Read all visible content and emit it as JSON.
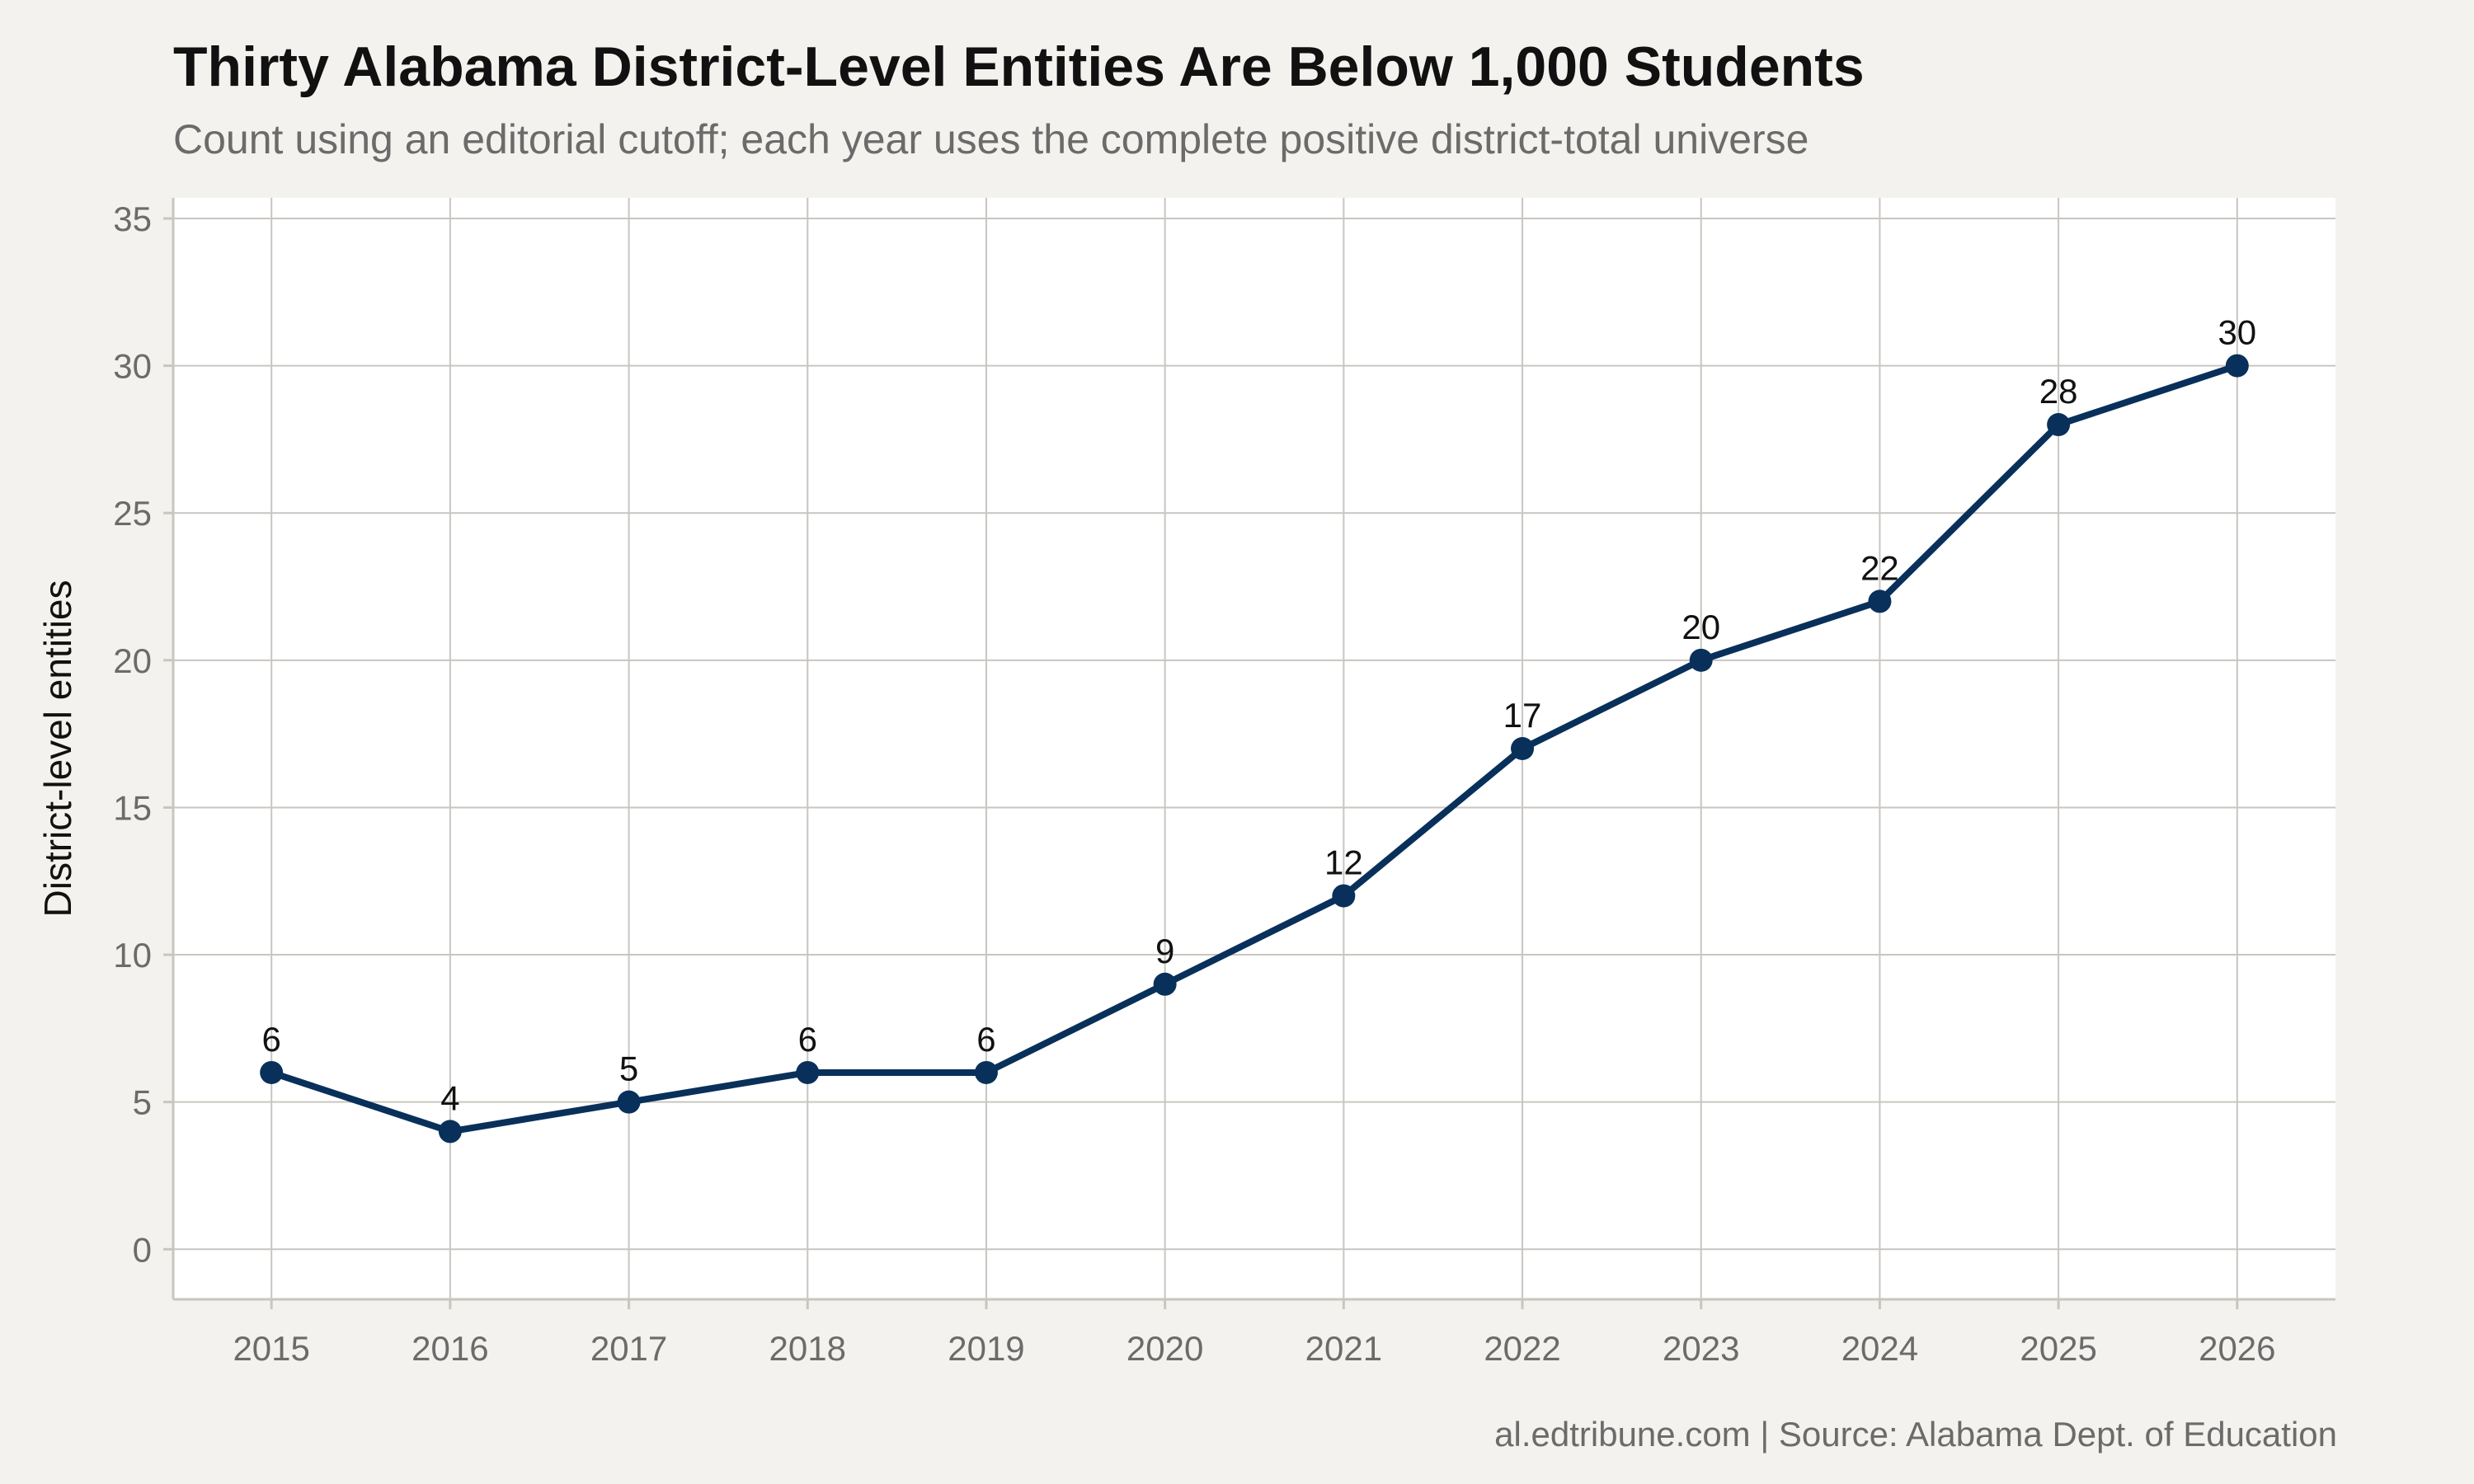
{
  "chart_data": {
    "type": "line",
    "title": "Thirty Alabama District-Level Entities Are Below 1,000 Students",
    "subtitle": "Count using an editorial cutoff; each year uses the complete positive district-total universe",
    "caption": "al.edtribune.com | Source: Alabama Dept. of Education",
    "xlabel": "",
    "ylabel": "District-level entities",
    "x": [
      2015,
      2016,
      2017,
      2018,
      2019,
      2020,
      2021,
      2022,
      2023,
      2024,
      2025,
      2026
    ],
    "series": [
      {
        "values": [
          6,
          4,
          5,
          6,
          6,
          9,
          12,
          17,
          20,
          22,
          28,
          30
        ]
      }
    ],
    "data_labels": [
      "6",
      "4",
      "5",
      "6",
      "6",
      "9",
      "12",
      "17",
      "20",
      "22",
      "28",
      "30"
    ],
    "x_ticks": [
      "2015",
      "2016",
      "2017",
      "2018",
      "2019",
      "2020",
      "2021",
      "2022",
      "2023",
      "2024",
      "2025",
      "2026"
    ],
    "y_ticks": [
      "0",
      "5",
      "10",
      "15",
      "20",
      "25",
      "30",
      "35"
    ],
    "xlim": [
      2014.45,
      2026.55
    ],
    "ylim": [
      -1.7,
      35.7
    ],
    "grid": true,
    "legend": "none",
    "colors": {
      "line": "#08305a",
      "grid": "#c9c6c0",
      "panel": "#ffffff",
      "background": "#f4f2ee"
    }
  }
}
